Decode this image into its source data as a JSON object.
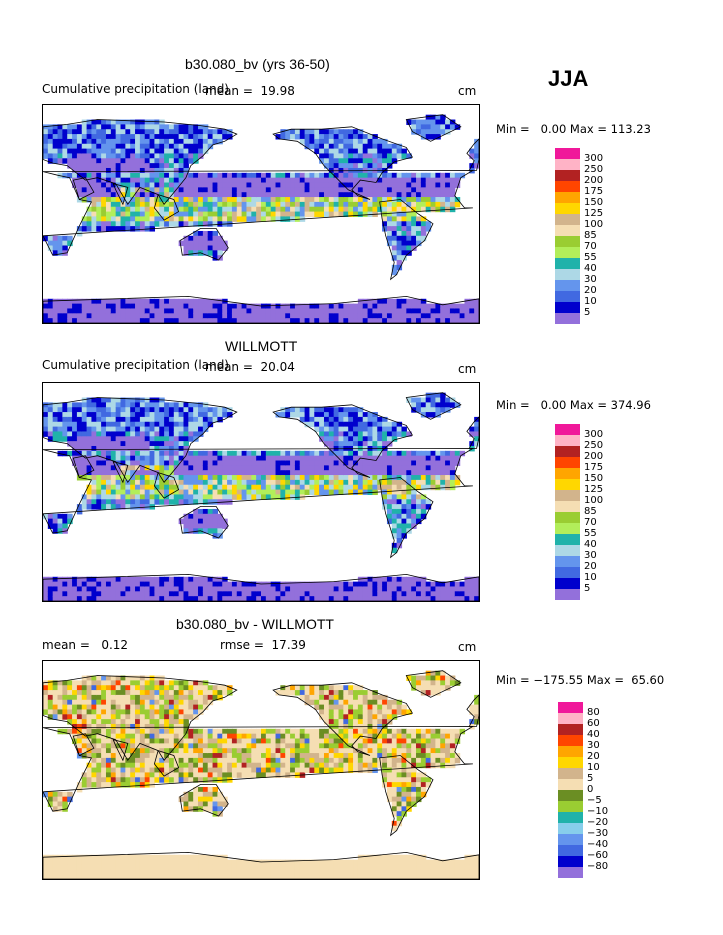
{
  "season": "JJA",
  "panels": [
    {
      "title": "b30.080_bv (yrs 36-50)",
      "left_text": "Cumulative precipitation (land)",
      "mean_text": "mean =  19.98",
      "rmse_text": "",
      "units": "cm",
      "minmax": "Min =   0.00 Max = 113.23",
      "palette": "precip"
    },
    {
      "title": "WILLMOTT",
      "left_text": "Cumulative precipitation (land)",
      "mean_text": "mean =  20.04",
      "rmse_text": "",
      "units": "cm",
      "minmax": "Min =   0.00 Max = 374.96",
      "palette": "precip"
    },
    {
      "title": "b30.080_bv - WILLMOTT",
      "left_text": "mean =   0.12",
      "mean_text": "",
      "rmse_text": "rmse =  17.39",
      "units": "cm",
      "minmax": "Min = −175.55 Max =  65.60",
      "palette": "diff"
    }
  ],
  "colorbars": {
    "precip": {
      "labels": [
        "300",
        "250",
        "200",
        "175",
        "150",
        "125",
        "100",
        "85",
        "70",
        "55",
        "40",
        "30",
        "20",
        "10",
        "5"
      ],
      "colors": [
        "#f0189a",
        "#ffb3c6",
        "#b22222",
        "#ff4500",
        "#ffa500",
        "#ffd700",
        "#d2b48c",
        "#f5deb3",
        "#9acd32",
        "#b2ee5a",
        "#20b2aa",
        "#add8e6",
        "#6495ed",
        "#4169e1",
        "#0000cd",
        "#9370db"
      ]
    },
    "diff": {
      "labels": [
        "80",
        "60",
        "40",
        "30",
        "20",
        "10",
        "5",
        "0",
        "−5",
        "−10",
        "−20",
        "−30",
        "−40",
        "−60",
        "−80"
      ],
      "colors": [
        "#f0189a",
        "#ffb3c6",
        "#b22222",
        "#ff4500",
        "#ffa500",
        "#ffd700",
        "#d2b48c",
        "#f5deb3",
        "#6b8e23",
        "#9acd32",
        "#20b2aa",
        "#87ceeb",
        "#6495ed",
        "#4169e1",
        "#0000cd",
        "#9370db"
      ]
    }
  },
  "chart_data": [
    {
      "type": "heatmap",
      "title": "b30.080_bv (yrs 36-50)",
      "subtitle": "Cumulative precipitation (land)",
      "units": "cm",
      "season": "JJA",
      "mean": 19.98,
      "min": 0.0,
      "max": 113.23,
      "contour_levels": [
        5,
        10,
        20,
        30,
        40,
        55,
        70,
        85,
        100,
        125,
        150,
        175,
        200,
        250,
        300
      ]
    },
    {
      "type": "heatmap",
      "title": "WILLMOTT",
      "subtitle": "Cumulative precipitation (land)",
      "units": "cm",
      "season": "JJA",
      "mean": 20.04,
      "min": 0.0,
      "max": 374.96,
      "contour_levels": [
        5,
        10,
        20,
        30,
        40,
        55,
        70,
        85,
        100,
        125,
        150,
        175,
        200,
        250,
        300
      ]
    },
    {
      "type": "heatmap",
      "title": "b30.080_bv - WILLMOTT",
      "units": "cm",
      "season": "JJA",
      "mean": 0.12,
      "rmse": 17.39,
      "min": -175.55,
      "max": 65.6,
      "contour_levels": [
        -80,
        -60,
        -40,
        -30,
        -20,
        -10,
        -5,
        0,
        5,
        10,
        20,
        30,
        40,
        60,
        80
      ]
    }
  ]
}
